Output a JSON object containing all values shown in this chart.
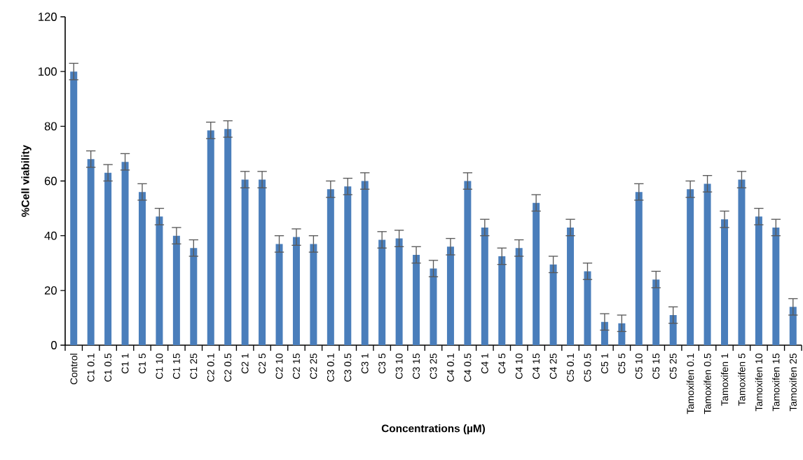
{
  "chart_data": {
    "type": "bar",
    "xlabel": "Concentrations (µM)",
    "ylabel": "%Cell viability",
    "categories": [
      "Control",
      "C1 0.1",
      "C1 0.5",
      "C1 1",
      "C1 5",
      "C1 10",
      "C1 15",
      "C1 25",
      "C2 0.1",
      "C2 0.5",
      "C2 1",
      "C2 5",
      "C2 10",
      "C2 15",
      "C2 25",
      "C3 0.1",
      "C3 0.5",
      "C3 1",
      "C3 5",
      "C3 10",
      "C3 15",
      "C3 25",
      "C4 0.1",
      "C4 0.5",
      "C4 1",
      "C4 5",
      "C4 10",
      "C4 15",
      "C4 25",
      "C5 0.1",
      "C5 0.5",
      "C5 1",
      "C5 5",
      "C5 10",
      "C5 15",
      "C5 25",
      "Tamoxifen 0.1",
      "Tamoxifen 0.5",
      "Tamoxifen 1",
      "Tamoxifen 5",
      "Tamoxifen 10",
      "Tamoxifen 15",
      "Tamoxifen 25"
    ],
    "values": [
      100,
      68,
      63,
      67,
      56,
      47,
      40,
      35.5,
      78.5,
      79,
      60.5,
      60.5,
      37,
      39.5,
      37,
      57,
      58,
      60,
      38.5,
      39,
      33,
      28,
      36,
      60,
      43,
      32.5,
      35.5,
      52,
      29.5,
      43,
      27,
      8.5,
      8,
      56,
      24,
      11,
      57,
      59,
      46,
      60.5,
      47,
      43,
      14
    ],
    "errors": [
      3,
      3,
      3,
      3,
      3,
      3,
      3,
      3,
      3,
      3,
      3,
      3,
      3,
      3,
      3,
      3,
      3,
      3,
      3,
      3,
      3,
      3,
      3,
      3,
      3,
      3,
      3,
      3,
      3,
      3,
      3,
      3,
      3,
      3,
      3,
      3,
      3,
      3,
      3,
      3,
      3,
      3,
      3
    ],
    "color": "#4a7ebb",
    "ylim": [
      0,
      120
    ],
    "yticks": [
      0,
      20,
      40,
      60,
      80,
      100,
      120
    ],
    "grid": false
  }
}
